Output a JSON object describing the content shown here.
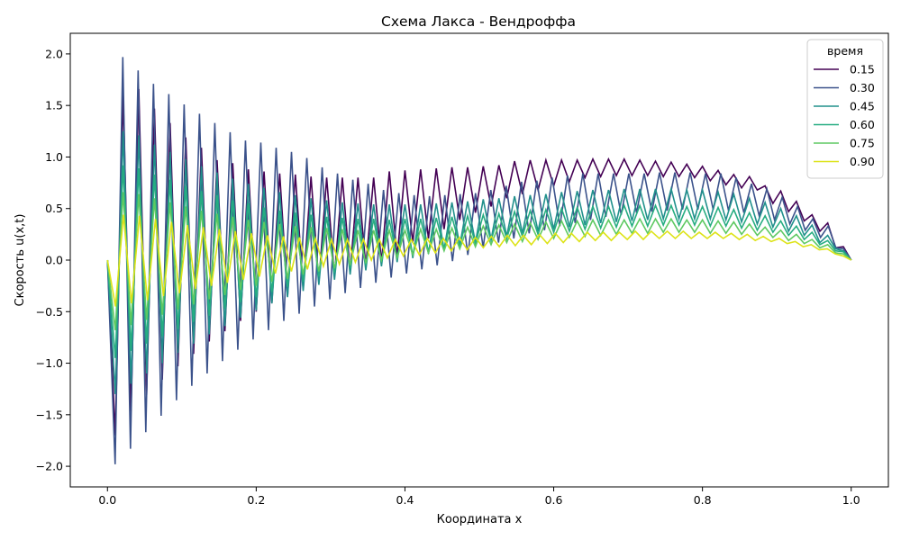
{
  "chart_data": {
    "type": "line",
    "title": "Схема Лакса - Вендроффа",
    "xlabel": "Координата x",
    "ylabel": "Скорость u(x,t)",
    "xlim": [
      -0.05,
      1.05
    ],
    "ylim": [
      -2.2,
      2.2
    ],
    "xticks": [
      0.0,
      0.2,
      0.4,
      0.6,
      0.8,
      1.0
    ],
    "xtick_labels": [
      "0.0",
      "0.2",
      "0.4",
      "0.6",
      "0.8",
      "1.0"
    ],
    "yticks": [
      -2.0,
      -1.5,
      -1.0,
      -0.5,
      0.0,
      0.5,
      1.0,
      1.5,
      2.0
    ],
    "ytick_labels": [
      "−2.0",
      "−1.5",
      "−1.0",
      "−0.5",
      "0.0",
      "0.5",
      "1.0",
      "1.5",
      "2.0"
    ],
    "grid": false,
    "legend": {
      "title": "время",
      "placement": "top-right"
    },
    "series": [
      {
        "name": "0.15",
        "color": "#440154",
        "values": [
          0.0,
          -1.7,
          1.62,
          -1.47,
          1.66,
          -1.31,
          1.47,
          -1.16,
          1.33,
          -1.03,
          1.19,
          -0.91,
          1.09,
          -0.79,
          0.97,
          -0.69,
          0.94,
          -0.59,
          0.88,
          -0.5,
          0.86,
          -0.42,
          0.84,
          -0.35,
          0.83,
          -0.28,
          0.81,
          -0.22,
          0.8,
          -0.16,
          0.8,
          -0.11,
          0.8,
          -0.06,
          0.8,
          -0.02,
          0.86,
          0.03,
          0.87,
          0.17,
          0.88,
          0.21,
          0.89,
          0.3,
          0.9,
          0.39,
          0.9,
          0.46,
          0.91,
          0.52,
          0.92,
          0.6,
          0.96,
          0.64,
          0.97,
          0.68,
          0.97,
          0.72,
          0.97,
          0.76,
          0.97,
          0.8,
          0.98,
          0.81,
          0.98,
          0.82,
          0.98,
          0.82,
          0.97,
          0.82,
          0.96,
          0.81,
          0.95,
          0.81,
          0.93,
          0.8,
          0.91,
          0.77,
          0.87,
          0.73,
          0.83,
          0.7,
          0.81,
          0.68,
          0.72,
          0.55,
          0.67,
          0.47,
          0.57,
          0.38,
          0.44,
          0.28,
          0.36,
          0.12,
          0.13,
          0.0
        ]
      },
      {
        "name": "0.30",
        "color": "#3b528b",
        "values": [
          0.0,
          -1.98,
          1.97,
          -1.83,
          1.84,
          -1.67,
          1.71,
          -1.51,
          1.61,
          -1.36,
          1.51,
          -1.22,
          1.42,
          -1.1,
          1.33,
          -0.98,
          1.24,
          -0.87,
          1.16,
          -0.77,
          1.14,
          -0.68,
          1.09,
          -0.59,
          1.05,
          -0.52,
          0.99,
          -0.45,
          0.9,
          -0.38,
          0.84,
          -0.32,
          0.78,
          -0.27,
          0.74,
          -0.22,
          0.68,
          -0.17,
          0.65,
          -0.13,
          0.63,
          -0.09,
          0.62,
          -0.05,
          0.63,
          -0.01,
          0.64,
          0.05,
          0.65,
          0.12,
          0.68,
          0.17,
          0.72,
          0.21,
          0.76,
          0.26,
          0.77,
          0.29,
          0.8,
          0.33,
          0.82,
          0.36,
          0.84,
          0.39,
          0.84,
          0.42,
          0.84,
          0.44,
          0.84,
          0.46,
          0.84,
          0.47,
          0.85,
          0.48,
          0.85,
          0.49,
          0.85,
          0.49,
          0.84,
          0.49,
          0.84,
          0.48,
          0.8,
          0.46,
          0.74,
          0.43,
          0.69,
          0.39,
          0.61,
          0.35,
          0.52,
          0.29,
          0.4,
          0.22,
          0.33,
          0.12,
          0.11,
          0.0
        ]
      },
      {
        "name": "0.45",
        "color": "#21908c",
        "values": [
          0.0,
          -1.3,
          1.25,
          -1.2,
          1.21,
          -1.1,
          1.12,
          -1.0,
          1.05,
          -0.9,
          0.98,
          -0.81,
          0.91,
          -0.72,
          0.85,
          -0.64,
          0.79,
          -0.56,
          0.74,
          -0.49,
          0.7,
          -0.42,
          0.66,
          -0.36,
          0.63,
          -0.3,
          0.6,
          -0.24,
          0.58,
          -0.19,
          0.56,
          -0.14,
          0.55,
          -0.1,
          0.54,
          -0.06,
          0.54,
          -0.02,
          0.54,
          0.02,
          0.54,
          0.06,
          0.55,
          0.1,
          0.56,
          0.14,
          0.57,
          0.17,
          0.59,
          0.2,
          0.6,
          0.23,
          0.62,
          0.26,
          0.63,
          0.28,
          0.64,
          0.3,
          0.66,
          0.32,
          0.67,
          0.34,
          0.68,
          0.36,
          0.68,
          0.37,
          0.69,
          0.38,
          0.69,
          0.39,
          0.69,
          0.4,
          0.69,
          0.4,
          0.68,
          0.4,
          0.68,
          0.4,
          0.66,
          0.39,
          0.64,
          0.37,
          0.6,
          0.35,
          0.56,
          0.32,
          0.5,
          0.28,
          0.43,
          0.24,
          0.34,
          0.17,
          0.24,
          0.11,
          0.09,
          0.0
        ]
      },
      {
        "name": "0.60",
        "color": "#27ad81",
        "values": [
          0.0,
          -0.95,
          0.92,
          -0.88,
          0.89,
          -0.81,
          0.83,
          -0.74,
          0.78,
          -0.67,
          0.72,
          -0.6,
          0.67,
          -0.54,
          0.63,
          -0.47,
          0.58,
          -0.41,
          0.55,
          -0.36,
          0.51,
          -0.31,
          0.48,
          -0.26,
          0.46,
          -0.21,
          0.44,
          -0.16,
          0.42,
          -0.12,
          0.41,
          -0.08,
          0.4,
          -0.05,
          0.4,
          -0.02,
          0.39,
          0.02,
          0.4,
          0.05,
          0.4,
          0.08,
          0.41,
          0.11,
          0.42,
          0.14,
          0.43,
          0.16,
          0.44,
          0.19,
          0.45,
          0.21,
          0.47,
          0.23,
          0.48,
          0.25,
          0.49,
          0.27,
          0.5,
          0.28,
          0.51,
          0.3,
          0.52,
          0.31,
          0.52,
          0.32,
          0.53,
          0.33,
          0.53,
          0.33,
          0.53,
          0.34,
          0.53,
          0.34,
          0.52,
          0.34,
          0.52,
          0.33,
          0.51,
          0.33,
          0.49,
          0.31,
          0.46,
          0.29,
          0.43,
          0.27,
          0.38,
          0.24,
          0.33,
          0.2,
          0.27,
          0.15,
          0.19,
          0.09,
          0.08,
          0.0
        ]
      },
      {
        "name": "0.75",
        "color": "#5ec962",
        "values": [
          0.0,
          -0.68,
          0.66,
          -0.63,
          0.64,
          -0.58,
          0.6,
          -0.53,
          0.56,
          -0.48,
          0.52,
          -0.43,
          0.48,
          -0.38,
          0.45,
          -0.34,
          0.42,
          -0.29,
          0.39,
          -0.25,
          0.37,
          -0.21,
          0.35,
          -0.18,
          0.33,
          -0.14,
          0.32,
          -0.11,
          0.31,
          -0.08,
          0.3,
          -0.05,
          0.29,
          -0.03,
          0.29,
          0.0,
          0.29,
          0.02,
          0.29,
          0.05,
          0.3,
          0.07,
          0.3,
          0.09,
          0.31,
          0.11,
          0.32,
          0.13,
          0.33,
          0.15,
          0.34,
          0.17,
          0.35,
          0.18,
          0.36,
          0.2,
          0.37,
          0.21,
          0.38,
          0.22,
          0.38,
          0.23,
          0.39,
          0.24,
          0.39,
          0.25,
          0.39,
          0.26,
          0.4,
          0.26,
          0.4,
          0.27,
          0.4,
          0.27,
          0.39,
          0.27,
          0.39,
          0.26,
          0.38,
          0.26,
          0.37,
          0.25,
          0.35,
          0.24,
          0.32,
          0.22,
          0.29,
          0.19,
          0.25,
          0.16,
          0.2,
          0.12,
          0.15,
          0.07,
          0.06,
          0.0
        ]
      },
      {
        "name": "0.90",
        "color": "#dde318",
        "values": [
          0.0,
          -0.45,
          0.44,
          -0.42,
          0.43,
          -0.39,
          0.4,
          -0.35,
          0.37,
          -0.32,
          0.34,
          -0.28,
          0.32,
          -0.25,
          0.3,
          -0.22,
          0.28,
          -0.19,
          0.26,
          -0.16,
          0.24,
          -0.13,
          0.23,
          -0.11,
          0.22,
          -0.09,
          0.21,
          -0.06,
          0.2,
          -0.04,
          0.2,
          -0.02,
          0.2,
          0.0,
          0.2,
          0.02,
          0.2,
          0.04,
          0.2,
          0.05,
          0.21,
          0.07,
          0.21,
          0.09,
          0.22,
          0.1,
          0.22,
          0.12,
          0.23,
          0.13,
          0.24,
          0.14,
          0.24,
          0.15,
          0.25,
          0.16,
          0.26,
          0.17,
          0.26,
          0.18,
          0.27,
          0.19,
          0.27,
          0.19,
          0.27,
          0.2,
          0.28,
          0.2,
          0.28,
          0.21,
          0.28,
          0.21,
          0.28,
          0.21,
          0.27,
          0.21,
          0.27,
          0.21,
          0.26,
          0.2,
          0.25,
          0.19,
          0.23,
          0.18,
          0.21,
          0.16,
          0.18,
          0.13,
          0.15,
          0.1,
          0.11,
          0.06,
          0.04,
          0.0
        ]
      }
    ]
  }
}
